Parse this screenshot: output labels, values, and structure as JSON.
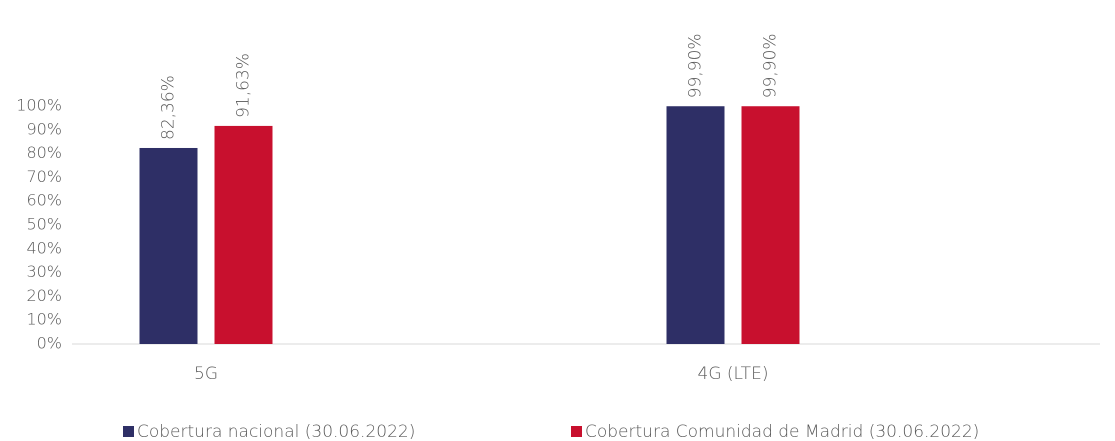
{
  "chart_data": {
    "type": "bar",
    "categories": [
      "5G",
      "4G (LTE)"
    ],
    "series": [
      {
        "name": "Cobertura nacional (30.06.2022)",
        "color": "#2e2f66",
        "values": [
          82.36,
          99.9
        ],
        "value_labels": [
          "82,36%",
          "99,90%"
        ]
      },
      {
        "name": "Cobertura Comunidad de Madrid (30.06.2022)",
        "color": "#c8102e",
        "values": [
          91.63,
          99.9
        ],
        "value_labels": [
          "91,63%",
          "99,90%"
        ]
      }
    ],
    "ylim": [
      0,
      100
    ],
    "yticks": [
      {
        "value": 0,
        "label": "0%"
      },
      {
        "value": 10,
        "label": "10%"
      },
      {
        "value": 20,
        "label": "20%"
      },
      {
        "value": 30,
        "label": "30%"
      },
      {
        "value": 40,
        "label": "40%"
      },
      {
        "value": 50,
        "label": "50%"
      },
      {
        "value": 60,
        "label": "60%"
      },
      {
        "value": 70,
        "label": "70%"
      },
      {
        "value": 80,
        "label": "80%"
      },
      {
        "value": 90,
        "label": "90%"
      },
      {
        "value": 100,
        "label": "100%"
      }
    ],
    "grid": false,
    "legend": "bottom"
  }
}
